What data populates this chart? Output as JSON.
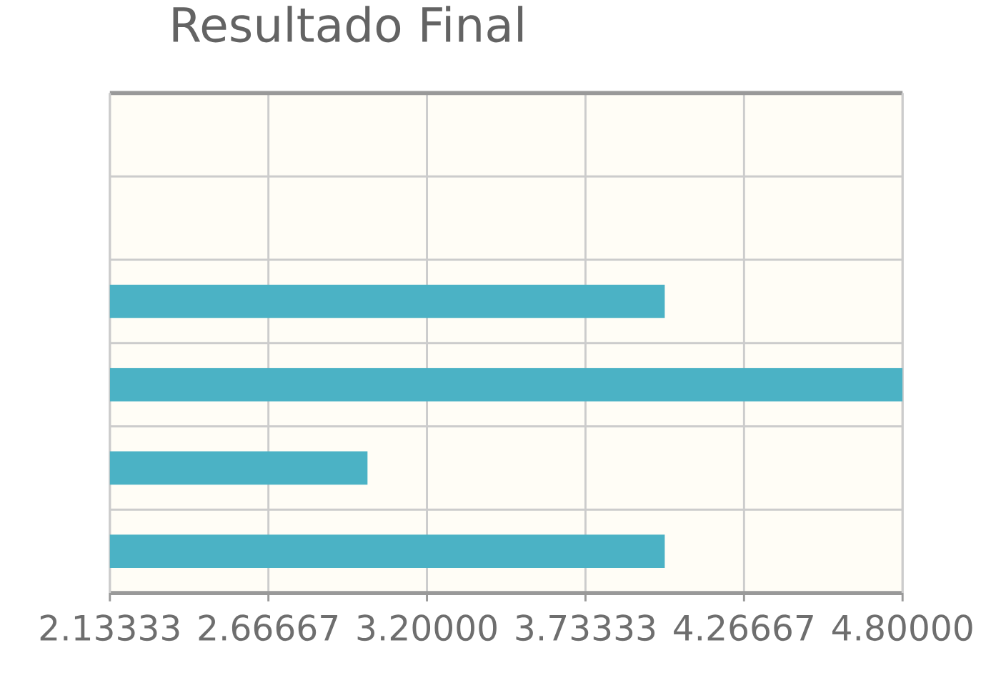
{
  "chart_data": {
    "type": "bar",
    "orientation": "horizontal",
    "title": "Resultado Final",
    "categories": [
      null,
      null,
      null,
      null,
      null,
      null
    ],
    "values": [
      null,
      null,
      4,
      4.8,
      3,
      4
    ],
    "color": "#4bb2c5",
    "xlim": [
      2.13333,
      4.8
    ],
    "xticks": [
      {
        "value": 2.13333,
        "label": "2.13333"
      },
      {
        "value": 2.66667,
        "label": "2.66667"
      },
      {
        "value": 3.2,
        "label": "3.20000"
      },
      {
        "value": 3.73333,
        "label": "3.73333"
      },
      {
        "value": 4.26667,
        "label": "4.26667"
      },
      {
        "value": 4.8,
        "label": "4.80000"
      }
    ],
    "grid": true,
    "tick_labels": "x"
  }
}
